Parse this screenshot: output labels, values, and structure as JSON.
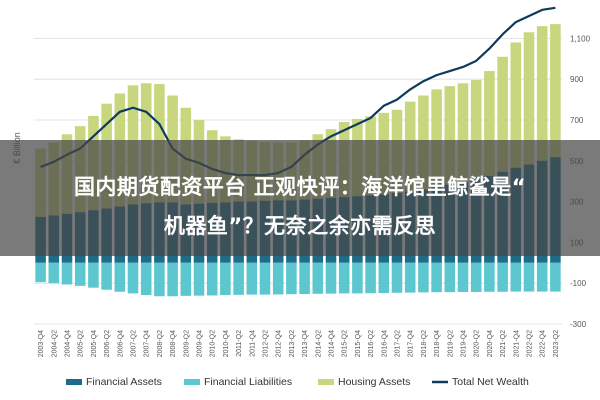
{
  "chart_data": {
    "type": "bar",
    "ylabel": "€ Billion",
    "ylim": [
      -300,
      1200
    ],
    "yticks": [
      "1,100",
      "900",
      "700",
      "500",
      "300",
      "100",
      "-100",
      "-300"
    ],
    "ytick_values": [
      1100,
      900,
      700,
      500,
      300,
      100,
      -100,
      -300
    ],
    "categories": [
      "2003-Q4",
      "2004-Q2",
      "2004-Q4",
      "2005-Q2",
      "2005-Q4",
      "2006-Q2",
      "2006-Q4",
      "2007-Q2",
      "2007-Q4",
      "2008-Q2",
      "2008-Q4",
      "2009-Q2",
      "2009-Q4",
      "2010-Q2",
      "2010-Q4",
      "2011-Q2",
      "2011-Q4",
      "2012-Q2",
      "2012-Q4",
      "2013-Q2",
      "2013-Q4",
      "2014-Q2",
      "2014-Q4",
      "2015-Q2",
      "2015-Q4",
      "2016-Q2",
      "2016-Q4",
      "2017-Q2",
      "2017-Q4",
      "2018-Q2",
      "2018-Q4",
      "2019-Q2",
      "2019-Q4",
      "2020-Q2",
      "2020-Q4",
      "2021-Q2",
      "2021-Q4",
      "2022-Q2",
      "2022-Q4",
      "2023-Q2"
    ],
    "series": [
      {
        "name": "Financial Assets",
        "color": "#1e6b8a",
        "kind": "bar",
        "values": [
          225,
          232,
          240,
          248,
          258,
          266,
          276,
          286,
          292,
          296,
          296,
          286,
          290,
          294,
          296,
          300,
          300,
          304,
          306,
          306,
          310,
          314,
          318,
          322,
          326,
          330,
          336,
          342,
          350,
          360,
          370,
          382,
          394,
          410,
          426,
          446,
          466,
          482,
          500,
          518
        ]
      },
      {
        "name": "Financial Liabilities",
        "color": "#5cc7cf",
        "kind": "bar",
        "values": [
          -95,
          -100,
          -106,
          -113,
          -122,
          -132,
          -142,
          -150,
          -158,
          -164,
          -164,
          -162,
          -161,
          -160,
          -158,
          -157,
          -156,
          -156,
          -155,
          -154,
          -153,
          -152,
          -151,
          -150,
          -150,
          -149,
          -148,
          -147,
          -146,
          -145,
          -144,
          -144,
          -143,
          -143,
          -142,
          -142,
          -141,
          -141,
          -141,
          -141
        ]
      },
      {
        "name": "Housing Assets",
        "color": "#c8d67e",
        "kind": "bar",
        "values": [
          560,
          590,
          630,
          670,
          720,
          780,
          830,
          870,
          880,
          876,
          820,
          760,
          700,
          650,
          620,
          605,
          598,
          592,
          590,
          590,
          600,
          630,
          655,
          690,
          705,
          718,
          735,
          750,
          790,
          820,
          850,
          866,
          880,
          896,
          940,
          1010,
          1080,
          1130,
          1160,
          1170
        ]
      },
      {
        "name": "Total Net Wealth",
        "color": "#0e3a5c",
        "kind": "line",
        "values": [
          470,
          495,
          530,
          560,
          620,
          680,
          740,
          760,
          740,
          680,
          560,
          510,
          490,
          460,
          440,
          430,
          430,
          430,
          440,
          470,
          530,
          580,
          620,
          650,
          680,
          710,
          770,
          800,
          850,
          890,
          920,
          940,
          960,
          990,
          1050,
          1120,
          1180,
          1210,
          1240,
          1250
        ]
      }
    ],
    "legend_position": "bottom",
    "grid": true
  },
  "banner": {
    "line1": "国内期货配资平台 正观快评：海洋馆里鲸鲨是“",
    "line2": "机器鱼”？无奈之余亦需反思"
  }
}
